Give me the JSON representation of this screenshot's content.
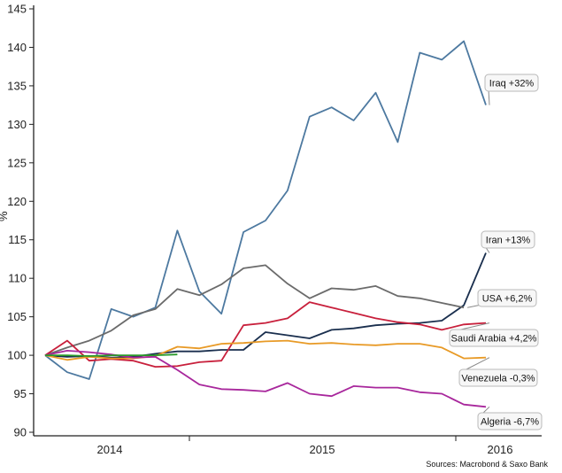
{
  "chart_data": {
    "type": "line",
    "ylabel": "%",
    "ylim": [
      90,
      145
    ],
    "yticks": [
      90,
      95,
      100,
      105,
      110,
      115,
      120,
      125,
      130,
      135,
      140,
      145
    ],
    "x_year_labels": [
      "2014",
      "2015",
      "2016"
    ],
    "grid": false,
    "source": "Sources: Macrobond & Saxo Bank",
    "series": [
      {
        "name": "Iraq +32%",
        "color": "#4d79a0",
        "values": [
          100,
          97.8,
          96.9,
          106.0,
          105.0,
          106.2,
          116.2,
          108.3,
          105.4,
          116.0,
          117.5,
          121.4,
          131.0,
          132.2,
          130.5,
          134.1,
          127.7,
          139.3,
          138.4,
          140.8,
          132.5
        ]
      },
      {
        "name": "Iran +13%",
        "color": "#1a2f4e",
        "values": [
          100,
          99.8,
          99.9,
          99.7,
          99.8,
          100.2,
          100.5,
          100.5,
          100.7,
          100.7,
          103.0,
          102.6,
          102.2,
          103.3,
          103.5,
          103.9,
          104.1,
          104.2,
          104.5,
          106.5,
          113.3
        ]
      },
      {
        "name": "USA +6,2%",
        "color": "#6b6b6b",
        "values": [
          100,
          101.0,
          101.9,
          103.2,
          105.2,
          106.0,
          108.6,
          107.8,
          109.2,
          111.3,
          111.7,
          109.3,
          107.4,
          108.7,
          108.5,
          109.0,
          107.7,
          107.4,
          106.8,
          106.2
        ]
      },
      {
        "name": "Saudi Arabia +4,2%",
        "color": "#c8203c",
        "values": [
          100,
          101.9,
          99.3,
          99.5,
          99.3,
          98.5,
          98.6,
          99.1,
          99.3,
          103.9,
          104.2,
          104.8,
          106.9,
          106.2,
          105.5,
          104.8,
          104.3,
          104.0,
          103.3,
          104.0,
          104.2
        ]
      },
      {
        "name": "Venezuela -0,3%",
        "color": "#e89a26",
        "values": [
          100,
          99.4,
          99.8,
          99.6,
          99.6,
          99.9,
          101.1,
          100.9,
          101.5,
          101.6,
          101.8,
          101.9,
          101.5,
          101.6,
          101.4,
          101.3,
          101.5,
          101.5,
          101.0,
          99.6,
          99.7
        ]
      },
      {
        "name": "Algeria -6,7%",
        "color": "#a8279c",
        "values": [
          100,
          100.6,
          100.4,
          100.1,
          99.7,
          99.8,
          98.1,
          96.2,
          95.6,
          95.5,
          95.3,
          96.4,
          95.0,
          94.7,
          96.0,
          95.8,
          95.8,
          95.2,
          95.0,
          93.6,
          93.3
        ]
      },
      {
        "name": "",
        "color": "#2a9a2a",
        "values": [
          100,
          100.0,
          99.9,
          100.0,
          100.0,
          100.0,
          100.1
        ]
      }
    ]
  }
}
